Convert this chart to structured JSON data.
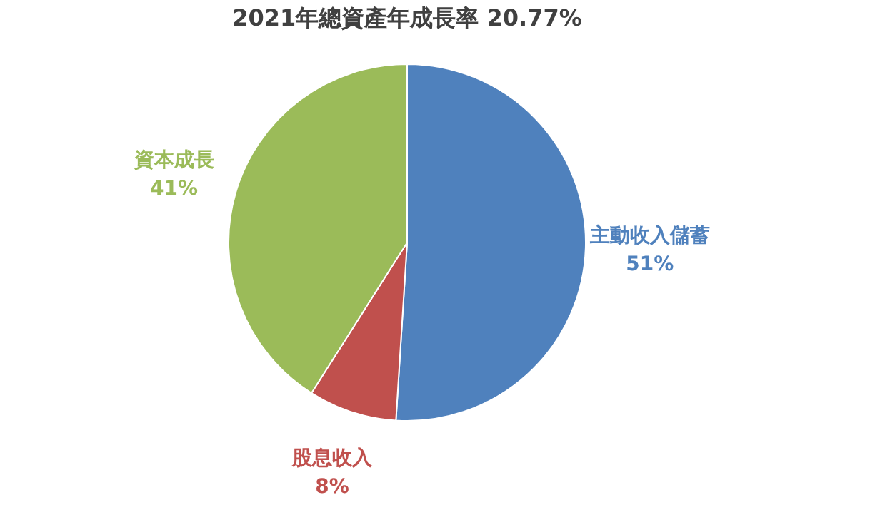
{
  "chart_data": {
    "type": "pie",
    "title": "2021年總資產年成長率 20.77%",
    "categories": [
      "主動收入儲蓄",
      "股息收入",
      "資本成長"
    ],
    "values": [
      51,
      8,
      41
    ],
    "colors": [
      "#4f81bd",
      "#c0504d",
      "#9bbb59"
    ],
    "value_labels": [
      "51%",
      "8%",
      "41%"
    ]
  }
}
